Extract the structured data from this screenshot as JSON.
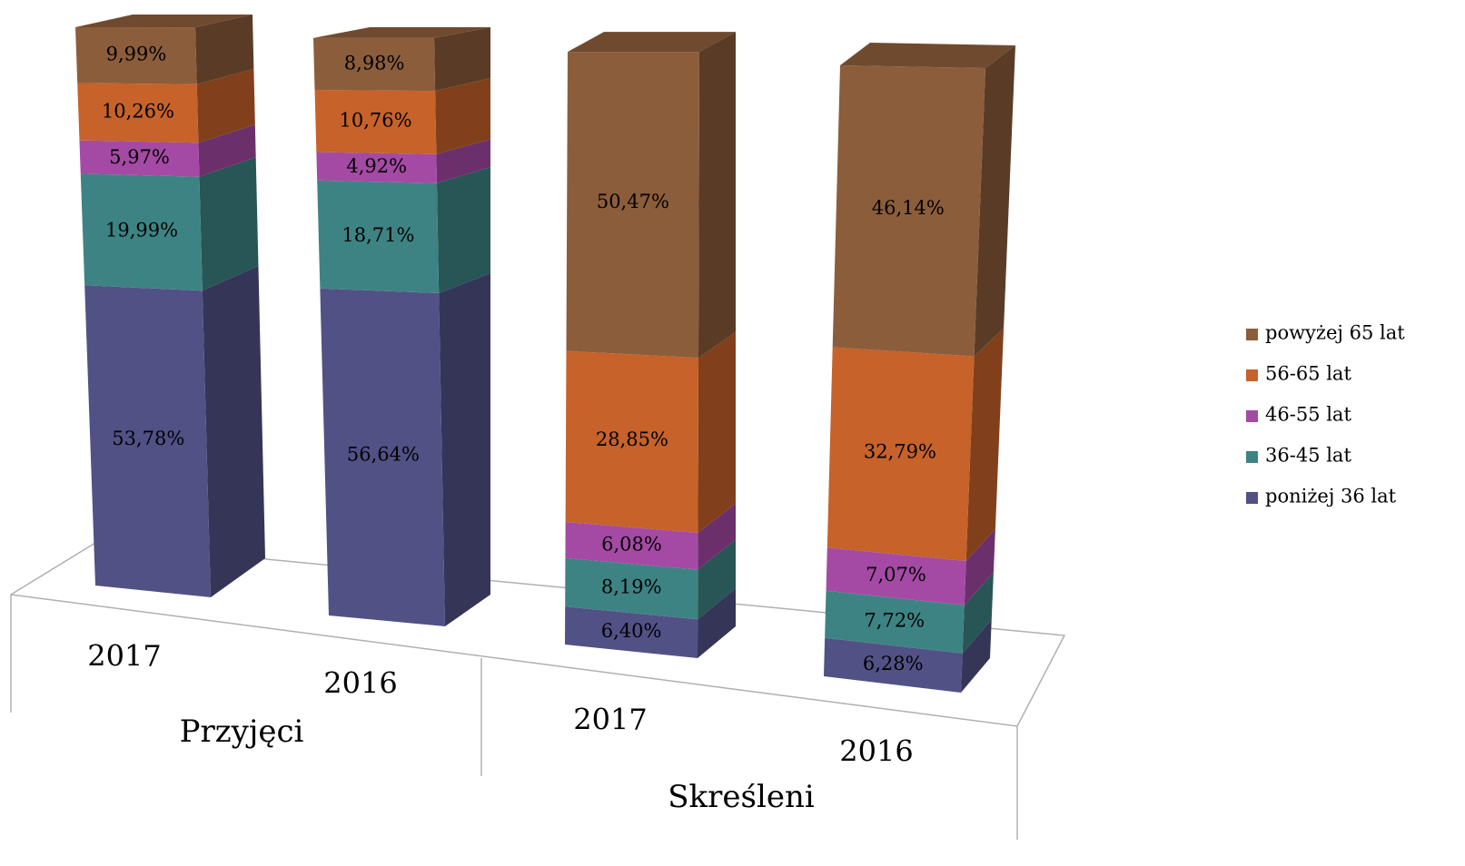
{
  "chart_data": {
    "type": "bar",
    "stacked": true,
    "categories": [
      "2017",
      "2016",
      "2017",
      "2016"
    ],
    "groups": [
      {
        "name": "Przyjęci",
        "categories": [
          0,
          1
        ]
      },
      {
        "name": "Skreśleni",
        "categories": [
          2,
          3
        ]
      }
    ],
    "series": [
      {
        "name": "poniżej 36 lat",
        "color": "#515186",
        "values": [
          53.78,
          56.64,
          6.4,
          6.28
        ],
        "value_labels": [
          "53,78%",
          "56,64%",
          "6,40%",
          "6,28%"
        ]
      },
      {
        "name": "36-45 lat",
        "color": "#3e8383",
        "values": [
          19.99,
          18.71,
          8.19,
          7.72
        ],
        "value_labels": [
          "19,99%",
          "18,71%",
          "8,19%",
          "7,72%"
        ]
      },
      {
        "name": "46-55 lat",
        "color": "#a44aa4",
        "values": [
          5.97,
          4.92,
          6.08,
          7.07
        ],
        "value_labels": [
          "5,97%",
          "4,92%",
          "6,08%",
          "7,07%"
        ]
      },
      {
        "name": "56-65 lat",
        "color": "#c6622a",
        "values": [
          10.26,
          10.76,
          28.85,
          32.79
        ],
        "value_labels": [
          "10,26%",
          "10,76%",
          "28,85%",
          "32,79%"
        ]
      },
      {
        "name": "powyżej 65 lat",
        "color": "#8b5d3b",
        "values": [
          9.99,
          8.98,
          50.47,
          46.14
        ],
        "value_labels": [
          "9,99%",
          "8,98%",
          "50,47%",
          "46,14%"
        ]
      }
    ],
    "legend": "right"
  }
}
